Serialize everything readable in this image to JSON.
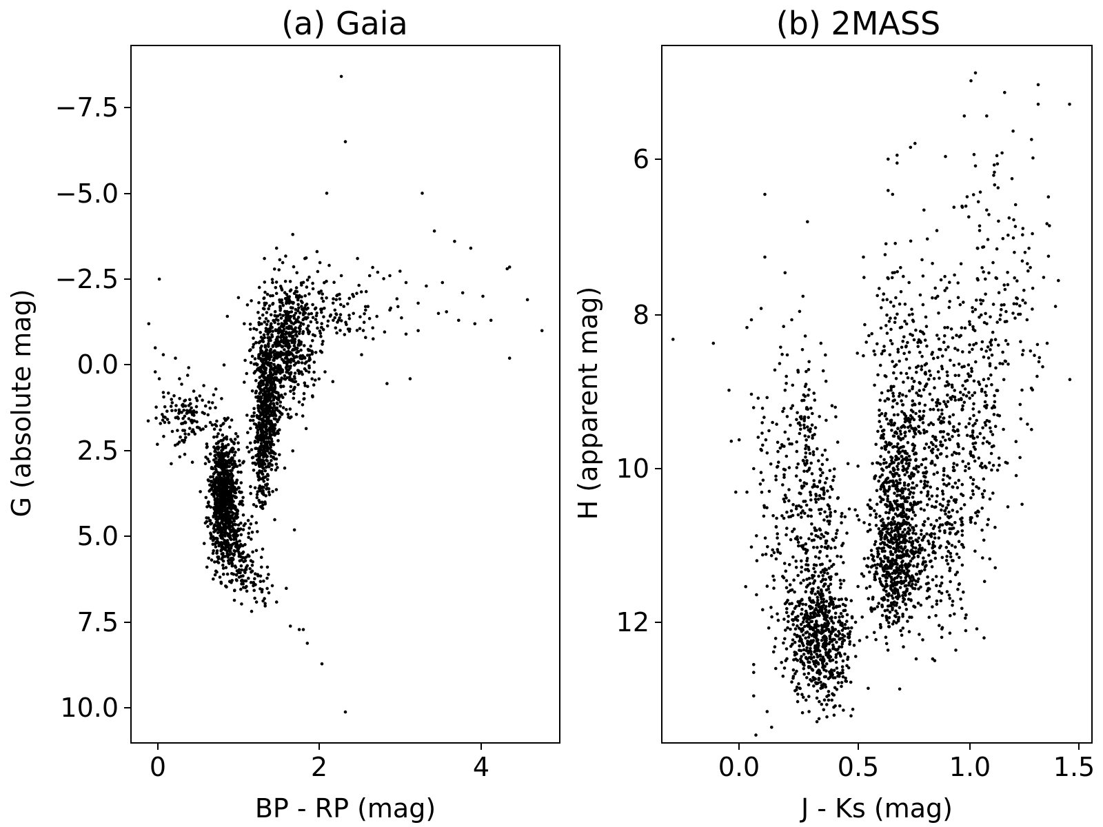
{
  "chart_data": [
    {
      "type": "scatter",
      "title": "(a) Gaia",
      "xlabel": "BP - RP (mag)",
      "ylabel": "G (absolute mag)",
      "xlim": [
        -0.3,
        5.0
      ],
      "ylim": [
        11.0,
        -9.3
      ],
      "y_inverted": true,
      "xticks": [
        0,
        2,
        4
      ],
      "xtick_labels": [
        "0",
        "2",
        "4"
      ],
      "yticks": [
        -7.5,
        -5.0,
        -2.5,
        0.0,
        2.5,
        5.0,
        7.5,
        10.0
      ],
      "ytick_labels": [
        "−7.5",
        "−5.0",
        "−2.5",
        "0.0",
        "2.5",
        "5.0",
        "7.5",
        "10.0"
      ],
      "marker_color": "#000000",
      "grid": false,
      "series": [
        {
          "points": [
            [
              2.3,
              -8.4
            ],
            [
              2.35,
              -6.5
            ],
            [
              2.12,
              -5.0
            ],
            [
              3.3,
              -5.0
            ],
            [
              3.45,
              -3.9
            ],
            [
              3.7,
              -3.6
            ],
            [
              3.9,
              -3.4
            ],
            [
              2.0,
              -3.3
            ],
            [
              1.5,
              -3.4
            ],
            [
              1.7,
              -3.8
            ],
            [
              1.85,
              -3.1
            ],
            [
              2.15,
              -2.9
            ],
            [
              2.3,
              -2.6
            ],
            [
              2.5,
              -3.1
            ],
            [
              2.65,
              -2.6
            ],
            [
              2.75,
              -2.7
            ],
            [
              2.9,
              -2.6
            ],
            [
              3.1,
              -2.4
            ],
            [
              3.35,
              -2.3
            ],
            [
              3.55,
              -2.4
            ],
            [
              3.8,
              -2.1
            ],
            [
              4.05,
              -2.0
            ],
            [
              4.35,
              -2.8
            ],
            [
              4.38,
              -2.85
            ],
            [
              4.6,
              -1.9
            ],
            [
              3.6,
              -1.55
            ],
            [
              3.5,
              -1.5
            ],
            [
              3.25,
              -1.8
            ],
            [
              3.0,
              -1.7
            ],
            [
              2.9,
              -1.6
            ],
            [
              2.6,
              -1.6
            ],
            [
              2.45,
              -1.5
            ],
            [
              2.4,
              -1.35
            ],
            [
              2.2,
              -1.3
            ],
            [
              3.25,
              -1.0
            ],
            [
              3.1,
              -0.9
            ],
            [
              2.6,
              -0.8
            ],
            [
              3.75,
              -1.3
            ],
            [
              3.95,
              -1.2
            ],
            [
              4.15,
              -1.3
            ],
            [
              4.78,
              -1.0
            ],
            [
              4.38,
              -0.2
            ],
            [
              3.15,
              0.4
            ],
            [
              2.55,
              -0.3
            ],
            [
              0.05,
              -2.5
            ],
            [
              -0.08,
              -1.2
            ],
            [
              0.0,
              -0.5
            ],
            [
              0.1,
              -0.3
            ],
            [
              0.25,
              -0.2
            ],
            [
              0.0,
              0.2
            ],
            [
              0.05,
              0.4
            ],
            [
              0.1,
              0.8
            ],
            [
              0.2,
              1.0
            ],
            [
              0.3,
              0.4
            ],
            [
              0.4,
              0.3
            ],
            [
              0.55,
              0.9
            ],
            [
              0.6,
              0.6
            ],
            [
              0.75,
              0.7
            ],
            [
              0.85,
              0.0
            ],
            [
              1.1,
              0.5
            ],
            [
              1.1,
              -1.2
            ],
            [
              1.35,
              -3.1
            ],
            [
              1.45,
              -2.4
            ],
            [
              1.6,
              3.0
            ],
            [
              1.7,
              2.5
            ],
            [
              1.72,
              4.8
            ],
            [
              1.67,
              7.6
            ],
            [
              1.78,
              7.7
            ],
            [
              1.83,
              7.7
            ],
            [
              1.88,
              8.1
            ],
            [
              2.06,
              8.7
            ],
            [
              2.35,
              10.1
            ],
            [
              0.75,
              6.0
            ],
            [
              0.92,
              6.3
            ],
            [
              0.65,
              4.7
            ],
            [
              1.35,
              6.8
            ],
            [
              1.5,
              6.9
            ],
            [
              1.62,
              6.5
            ],
            [
              1.25,
              5.4
            ],
            [
              1.2,
              6.0
            ],
            [
              1.3,
              6.3
            ]
          ],
          "clusters": [
            {
              "mean": [
                0.85,
                3.8
              ],
              "sd": [
                0.09,
                0.85
              ],
              "n": 900
            },
            {
              "mean": [
                0.4,
                1.6
              ],
              "sd": [
                0.18,
                0.45
              ],
              "n": 120
            },
            {
              "mean": [
                1.0,
                5.4
              ],
              "sd": [
                0.12,
                0.55
              ],
              "n": 140
            },
            {
              "mean": [
                1.2,
                6.3
              ],
              "sd": [
                0.12,
                0.35
              ],
              "n": 50
            },
            {
              "mean": [
                1.38,
                1.2
              ],
              "sd": [
                0.08,
                1.0
              ],
              "n": 600
            },
            {
              "mean": [
                1.6,
                -0.6
              ],
              "sd": [
                0.18,
                0.9
              ],
              "n": 550
            },
            {
              "mean": [
                2.1,
                -1.6
              ],
              "sd": [
                0.4,
                0.5
              ],
              "n": 140
            },
            {
              "mean": [
                1.3,
                2.8
              ],
              "sd": [
                0.05,
                0.7
              ],
              "n": 120
            }
          ]
        }
      ]
    },
    {
      "type": "scatter",
      "title": "(b) 2MASS",
      "xlabel": "J - Ks (mag)",
      "ylabel": "H (apparent mag)",
      "xlim": [
        -0.35,
        1.57
      ],
      "ylim": [
        13.4,
        4.5
      ],
      "y_inverted": true,
      "xticks": [
        0.0,
        0.5,
        1.0,
        1.5
      ],
      "xtick_labels": [
        "0.0",
        "0.5",
        "1.0",
        "1.5"
      ],
      "yticks": [
        6,
        8,
        10,
        12
      ],
      "ytick_labels": [
        "6",
        "8",
        "10",
        "12"
      ],
      "marker_color": "#000000",
      "grid": false,
      "series": [
        {
          "points": [
            [
              1.05,
              4.85
            ],
            [
              1.03,
              4.95
            ],
            [
              1.18,
              5.1
            ],
            [
              1.33,
              5.0
            ],
            [
              1.33,
              5.25
            ],
            [
              1.47,
              5.25
            ],
            [
              1.0,
              5.4
            ],
            [
              1.1,
              5.4
            ],
            [
              1.3,
              5.7
            ],
            [
              0.78,
              5.75
            ],
            [
              0.76,
              5.8
            ],
            [
              0.7,
              5.9
            ],
            [
              0.66,
              5.95
            ],
            [
              0.7,
              6.0
            ],
            [
              0.66,
              6.35
            ],
            [
              0.68,
              6.4
            ],
            [
              1.1,
              6.6
            ],
            [
              1.2,
              6.7
            ],
            [
              1.38,
              6.8
            ],
            [
              0.82,
              6.6
            ],
            [
              0.3,
              6.75
            ],
            [
              0.11,
              6.4
            ],
            [
              0.11,
              7.2
            ],
            [
              0.2,
              7.4
            ],
            [
              0.28,
              7.7
            ],
            [
              0.23,
              8.0
            ],
            [
              0.05,
              8.0
            ],
            [
              0.03,
              8.1
            ],
            [
              -0.12,
              8.3
            ],
            [
              -0.3,
              8.25
            ],
            [
              0.18,
              8.35
            ],
            [
              0.36,
              8.3
            ],
            [
              0.38,
              8.45
            ],
            [
              0.55,
              7.2
            ],
            [
              0.62,
              7.6
            ],
            [
              0.68,
              7.4
            ],
            [
              1.42,
              7.5
            ],
            [
              1.37,
              8.3
            ],
            [
              1.35,
              8.6
            ],
            [
              1.3,
              9.4
            ],
            [
              -0.05,
              8.9
            ],
            [
              0.05,
              8.95
            ],
            [
              0.08,
              9.0
            ],
            [
              0.2,
              8.9
            ],
            [
              -0.04,
              9.55
            ],
            [
              0.08,
              9.5
            ],
            [
              0.1,
              9.6
            ],
            [
              0.12,
              9.7
            ],
            [
              0.06,
              9.9
            ],
            [
              -0.02,
              10.2
            ],
            [
              0.03,
              10.2
            ],
            [
              0.05,
              10.9
            ],
            [
              0.1,
              11.0
            ],
            [
              0.12,
              11.4
            ],
            [
              0.1,
              11.7
            ],
            [
              0.06,
              12.4
            ],
            [
              0.06,
              12.5
            ],
            [
              0.06,
              12.8
            ],
            [
              0.12,
              13.0
            ],
            [
              0.14,
              13.2
            ],
            [
              0.07,
              13.3
            ],
            [
              1.28,
              8.0
            ]
          ],
          "clusters": [
            {
              "mean": [
                0.36,
                12.1
              ],
              "sd": [
                0.07,
                0.4
              ],
              "n": 550
            },
            {
              "mean": [
                0.33,
                10.8
              ],
              "sd": [
                0.07,
                0.9
              ],
              "n": 320
            },
            {
              "mean": [
                0.3,
                9.3
              ],
              "sd": [
                0.025,
                0.3
              ],
              "n": 45
            },
            {
              "mean": [
                0.69,
                11.1
              ],
              "sd": [
                0.06,
                0.45
              ],
              "n": 550
            },
            {
              "mean": [
                0.7,
                10.1
              ],
              "sd": [
                0.05,
                0.55
              ],
              "n": 300
            },
            {
              "mean": [
                0.78,
                9.0
              ],
              "sd": [
                0.09,
                0.65
              ],
              "n": 230
            },
            {
              "mean": [
                0.9,
                10.8
              ],
              "sd": [
                0.08,
                0.6
              ],
              "n": 220
            },
            {
              "mean": [
                1.0,
                9.4
              ],
              "sd": [
                0.11,
                0.7
              ],
              "n": 260
            },
            {
              "mean": [
                1.1,
                8.0
              ],
              "sd": [
                0.12,
                0.7
              ],
              "n": 140
            },
            {
              "mean": [
                1.15,
                6.8
              ],
              "sd": [
                0.12,
                0.5
              ],
              "n": 50
            },
            {
              "mean": [
                0.72,
                7.9
              ],
              "sd": [
                0.08,
                0.4
              ],
              "n": 60
            },
            {
              "mean": [
                0.2,
                10.2
              ],
              "sd": [
                0.08,
                1.0
              ],
              "n": 120
            }
          ]
        }
      ]
    }
  ]
}
